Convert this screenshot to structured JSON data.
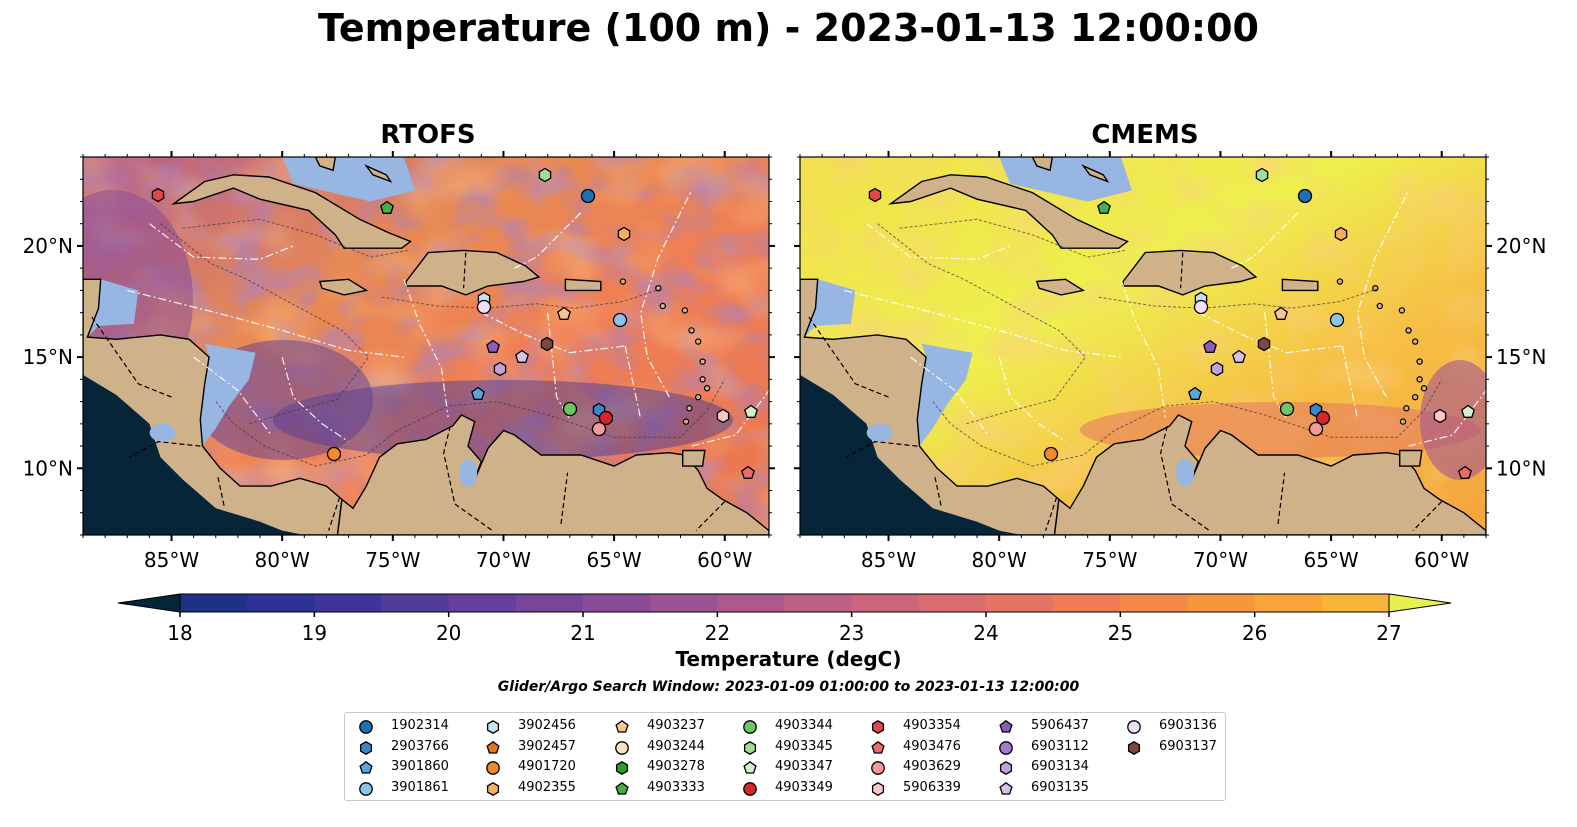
{
  "title": "Temperature (100 m) - 2023-01-13 12:00:00",
  "panels": [
    {
      "id": "rtofs",
      "title": "RTOFS"
    },
    {
      "id": "cmems",
      "title": "CMEMS"
    }
  ],
  "axes": {
    "lon_ticks": [
      "85°W",
      "80°W",
      "75°W",
      "70°W",
      "65°W",
      "60°W"
    ],
    "lat_ticks": [
      "20°N",
      "15°N",
      "10°N"
    ],
    "lon_range": [
      -89,
      -58
    ],
    "lat_range": [
      7,
      24
    ]
  },
  "colorbar": {
    "label": "Temperature (degC)",
    "ticks": [
      "18",
      "19",
      "20",
      "21",
      "22",
      "23",
      "24",
      "25",
      "26",
      "27"
    ],
    "range": [
      18,
      27
    ],
    "step": 0.5,
    "extend": "both",
    "colors": [
      "#04263a",
      "#0d2c5e",
      "#1f3184",
      "#2e3296",
      "#3d3599",
      "#523c9a",
      "#653f9b",
      "#77469a",
      "#8a4c98",
      "#9c5394",
      "#ad598e",
      "#be6086",
      "#cc667d",
      "#d96d71",
      "#e57465",
      "#ee7d57",
      "#f4894a",
      "#f8963e",
      "#f9a438",
      "#f9b43a",
      "#f6c540",
      "#efd84c",
      "#e8f050"
    ]
  },
  "search_window": "Glider/Argo Search Window: 2023-01-09 01:00:00 to 2023-01-13 12:00:00",
  "legend": [
    {
      "id": "1902314",
      "color": "#1f6fb4",
      "marker": "circle"
    },
    {
      "id": "2903766",
      "color": "#3a86c8",
      "marker": "hexagon"
    },
    {
      "id": "3901860",
      "color": "#5aa5dd",
      "marker": "pentagon"
    },
    {
      "id": "3901861",
      "color": "#8cc2ea",
      "marker": "circle"
    },
    {
      "id": "3902456",
      "color": "#c6e2f6",
      "marker": "hexagon"
    },
    {
      "id": "3902457",
      "color": "#e8741a",
      "marker": "pentagon"
    },
    {
      "id": "4901720",
      "color": "#f08a2a",
      "marker": "circle"
    },
    {
      "id": "4902355",
      "color": "#f6ad5c",
      "marker": "hexagon"
    },
    {
      "id": "4903237",
      "color": "#f9c58e",
      "marker": "pentagon"
    },
    {
      "id": "4903244",
      "color": "#fbe0c3",
      "marker": "circle"
    },
    {
      "id": "4903278",
      "color": "#2a9a35",
      "marker": "hexagon"
    },
    {
      "id": "4903333",
      "color": "#45b047",
      "marker": "pentagon"
    },
    {
      "id": "4903344",
      "color": "#6cc664",
      "marker": "circle"
    },
    {
      "id": "4903345",
      "color": "#a3dc97",
      "marker": "hexagon"
    },
    {
      "id": "4903347",
      "color": "#d2f0cb",
      "marker": "pentagon"
    },
    {
      "id": "4903349",
      "color": "#d62728",
      "marker": "circle"
    },
    {
      "id": "4903354",
      "color": "#e04848",
      "marker": "hexagon"
    },
    {
      "id": "4903476",
      "color": "#ec6a6a",
      "marker": "pentagon"
    },
    {
      "id": "4903629",
      "color": "#f59a9a",
      "marker": "circle"
    },
    {
      "id": "5906339",
      "color": "#fbc8c8",
      "marker": "hexagon"
    },
    {
      "id": "5906437",
      "color": "#8a5cbd",
      "marker": "pentagon"
    },
    {
      "id": "6903112",
      "color": "#a27ccc",
      "marker": "circle"
    },
    {
      "id": "6903134",
      "color": "#bfa2dd",
      "marker": "hexagon"
    },
    {
      "id": "6903135",
      "color": "#d7c2ec",
      "marker": "pentagon"
    },
    {
      "id": "6903136",
      "color": "#ecdff7",
      "marker": "circle"
    },
    {
      "id": "6903137",
      "color": "#7a4a3a",
      "marker": "hexagon"
    }
  ],
  "floats": [
    {
      "id": "1902314",
      "lon": -66.0,
      "lat": 22.0
    },
    {
      "id": "4903345",
      "lon": -68.0,
      "lat": 22.9
    },
    {
      "id": "4903354",
      "lon": -85.7,
      "lat": 22.0
    },
    {
      "id": "4903333",
      "lon": -75.2,
      "lat": 21.5
    },
    {
      "id": "4902355",
      "lon": -64.6,
      "lat": 20.4
    },
    {
      "id": "3902456",
      "lon": -70.0,
      "lat": 17.5
    },
    {
      "id": "6903136",
      "lon": -70.1,
      "lat": 17.2
    },
    {
      "id": "4903237",
      "lon": -67.0,
      "lat": 16.9
    },
    {
      "id": "3901861",
      "lon": -64.8,
      "lat": 16.6
    },
    {
      "id": "6903137",
      "lon": -68.0,
      "lat": 15.6
    },
    {
      "id": "5906437",
      "lon": -70.4,
      "lat": 15.4
    },
    {
      "id": "6903135",
      "lon": -69.1,
      "lat": 15.0
    },
    {
      "id": "6903134",
      "lon": -70.0,
      "lat": 14.4
    },
    {
      "id": "3901860",
      "lon": -71.2,
      "lat": 13.3
    },
    {
      "id": "4903344",
      "lon": -66.7,
      "lat": 12.6
    },
    {
      "id": "2903766",
      "lon": -65.7,
      "lat": 12.6
    },
    {
      "id": "4903349",
      "lon": -65.4,
      "lat": 12.3
    },
    {
      "id": "4903629",
      "lon": -65.8,
      "lat": 11.8
    },
    {
      "id": "5906339",
      "lon": -59.9,
      "lat": 12.4
    },
    {
      "id": "4903347",
      "lon": -58.6,
      "lat": 12.5
    },
    {
      "id": "4901720",
      "lon": -77.8,
      "lat": 10.6
    },
    {
      "id": "4903476",
      "lon": -58.8,
      "lat": 9.8
    }
  ]
}
